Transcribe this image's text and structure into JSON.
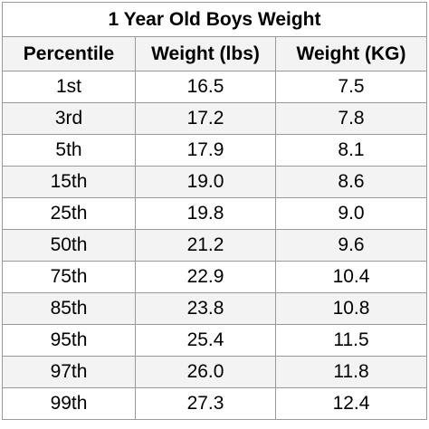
{
  "table": {
    "title": "1 Year Old Boys Weight",
    "headers": [
      "Percentile",
      "Weight (lbs)",
      "Weight (KG)"
    ],
    "rows": [
      [
        "1st",
        "16.5",
        "7.5"
      ],
      [
        "3rd",
        "17.2",
        "7.8"
      ],
      [
        "5th",
        "17.9",
        "8.1"
      ],
      [
        "15th",
        "19.0",
        "8.6"
      ],
      [
        "25th",
        "19.8",
        "9.0"
      ],
      [
        "50th",
        "21.2",
        "9.6"
      ],
      [
        "75th",
        "22.9",
        "10.4"
      ],
      [
        "85th",
        "23.8",
        "10.8"
      ],
      [
        "95th",
        "25.4",
        "11.5"
      ],
      [
        "97th",
        "26.0",
        "11.8"
      ],
      [
        "99th",
        "27.3",
        "12.4"
      ]
    ],
    "colors": {
      "stripe": "#f3f3f3",
      "border": "#9a9a9a",
      "background": "#ffffff"
    }
  }
}
